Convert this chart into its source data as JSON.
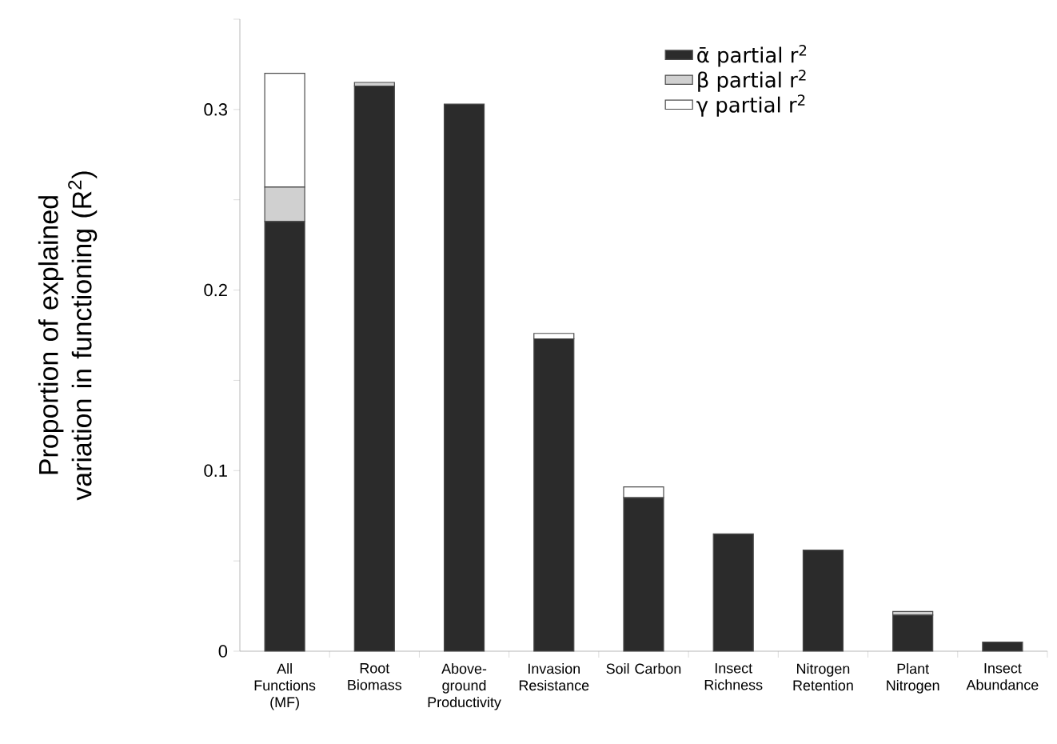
{
  "chart_data": {
    "type": "bar",
    "stacked": true,
    "ylabel": "Proportion of explained variation in functioning (R$^{2}$)",
    "categories": [
      "All Functions (MF)",
      "Root Biomass",
      "Above-ground Productivity",
      "Invasion Resistance",
      "Soil Carbon",
      "Insect Richness",
      "Nitrogen Retention",
      "Plant Nitrogen",
      "Insect Abundance"
    ],
    "series": [
      {
        "name": "ᾱ partial r$^{2}$",
        "color": "#2b2b2b",
        "values": [
          0.238,
          0.313,
          0.303,
          0.173,
          0.085,
          0.065,
          0.056,
          0.02,
          0.005
        ]
      },
      {
        "name": "β partial r$^{2}$",
        "color": "#d0d0d0",
        "values": [
          0.019,
          0.002,
          0,
          0,
          0,
          0,
          0,
          0.002,
          0
        ]
      },
      {
        "name": "γ partial r$^{2}$",
        "color": "#ffffff",
        "values": [
          0.063,
          0,
          0,
          0.003,
          0.006,
          0,
          0,
          0,
          0
        ]
      }
    ],
    "ylim": [
      0,
      0.35
    ],
    "yticks": [
      0,
      {
        "value": 0.05,
        "label": null
      },
      0.1,
      {
        "value": 0.15,
        "label": null
      },
      0.2,
      {
        "value": 0.25,
        "label": null
      },
      0.3,
      {
        "value": 0.35,
        "label": null
      }
    ],
    "legend": "top right",
    "grid": false
  }
}
